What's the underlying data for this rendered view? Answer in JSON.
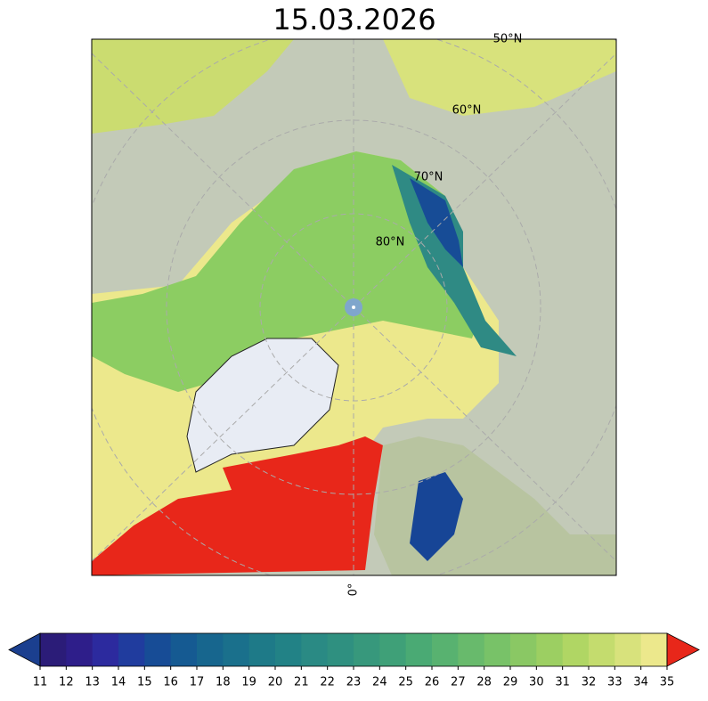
{
  "title": "15.03.2026",
  "map": {
    "lat_labels": [
      "50°N",
      "60°N",
      "70°N",
      "80°N"
    ],
    "lon_labels": [
      "0°"
    ]
  },
  "colorbar": {
    "ticks": [
      11,
      12,
      13,
      14,
      15,
      16,
      17,
      18,
      19,
      20,
      21,
      22,
      23,
      24,
      25,
      26,
      27,
      28,
      29,
      30,
      31,
      32,
      33,
      34,
      35
    ],
    "colors": [
      "#2b1c78",
      "#2e1e8a",
      "#2c2a9e",
      "#203c9e",
      "#174c96",
      "#155a92",
      "#17668e",
      "#1a708c",
      "#1e7a88",
      "#228286",
      "#2a8a84",
      "#2f9080",
      "#37987c",
      "#3fa078",
      "#4aaa74",
      "#58b270",
      "#68ba6c",
      "#78c268",
      "#8ac864",
      "#9ccf62",
      "#b0d664",
      "#c4dc6e",
      "#d8e27c",
      "#ece88c"
    ],
    "under_color": "#1b3f8f",
    "over_color": "#e8271a"
  }
}
